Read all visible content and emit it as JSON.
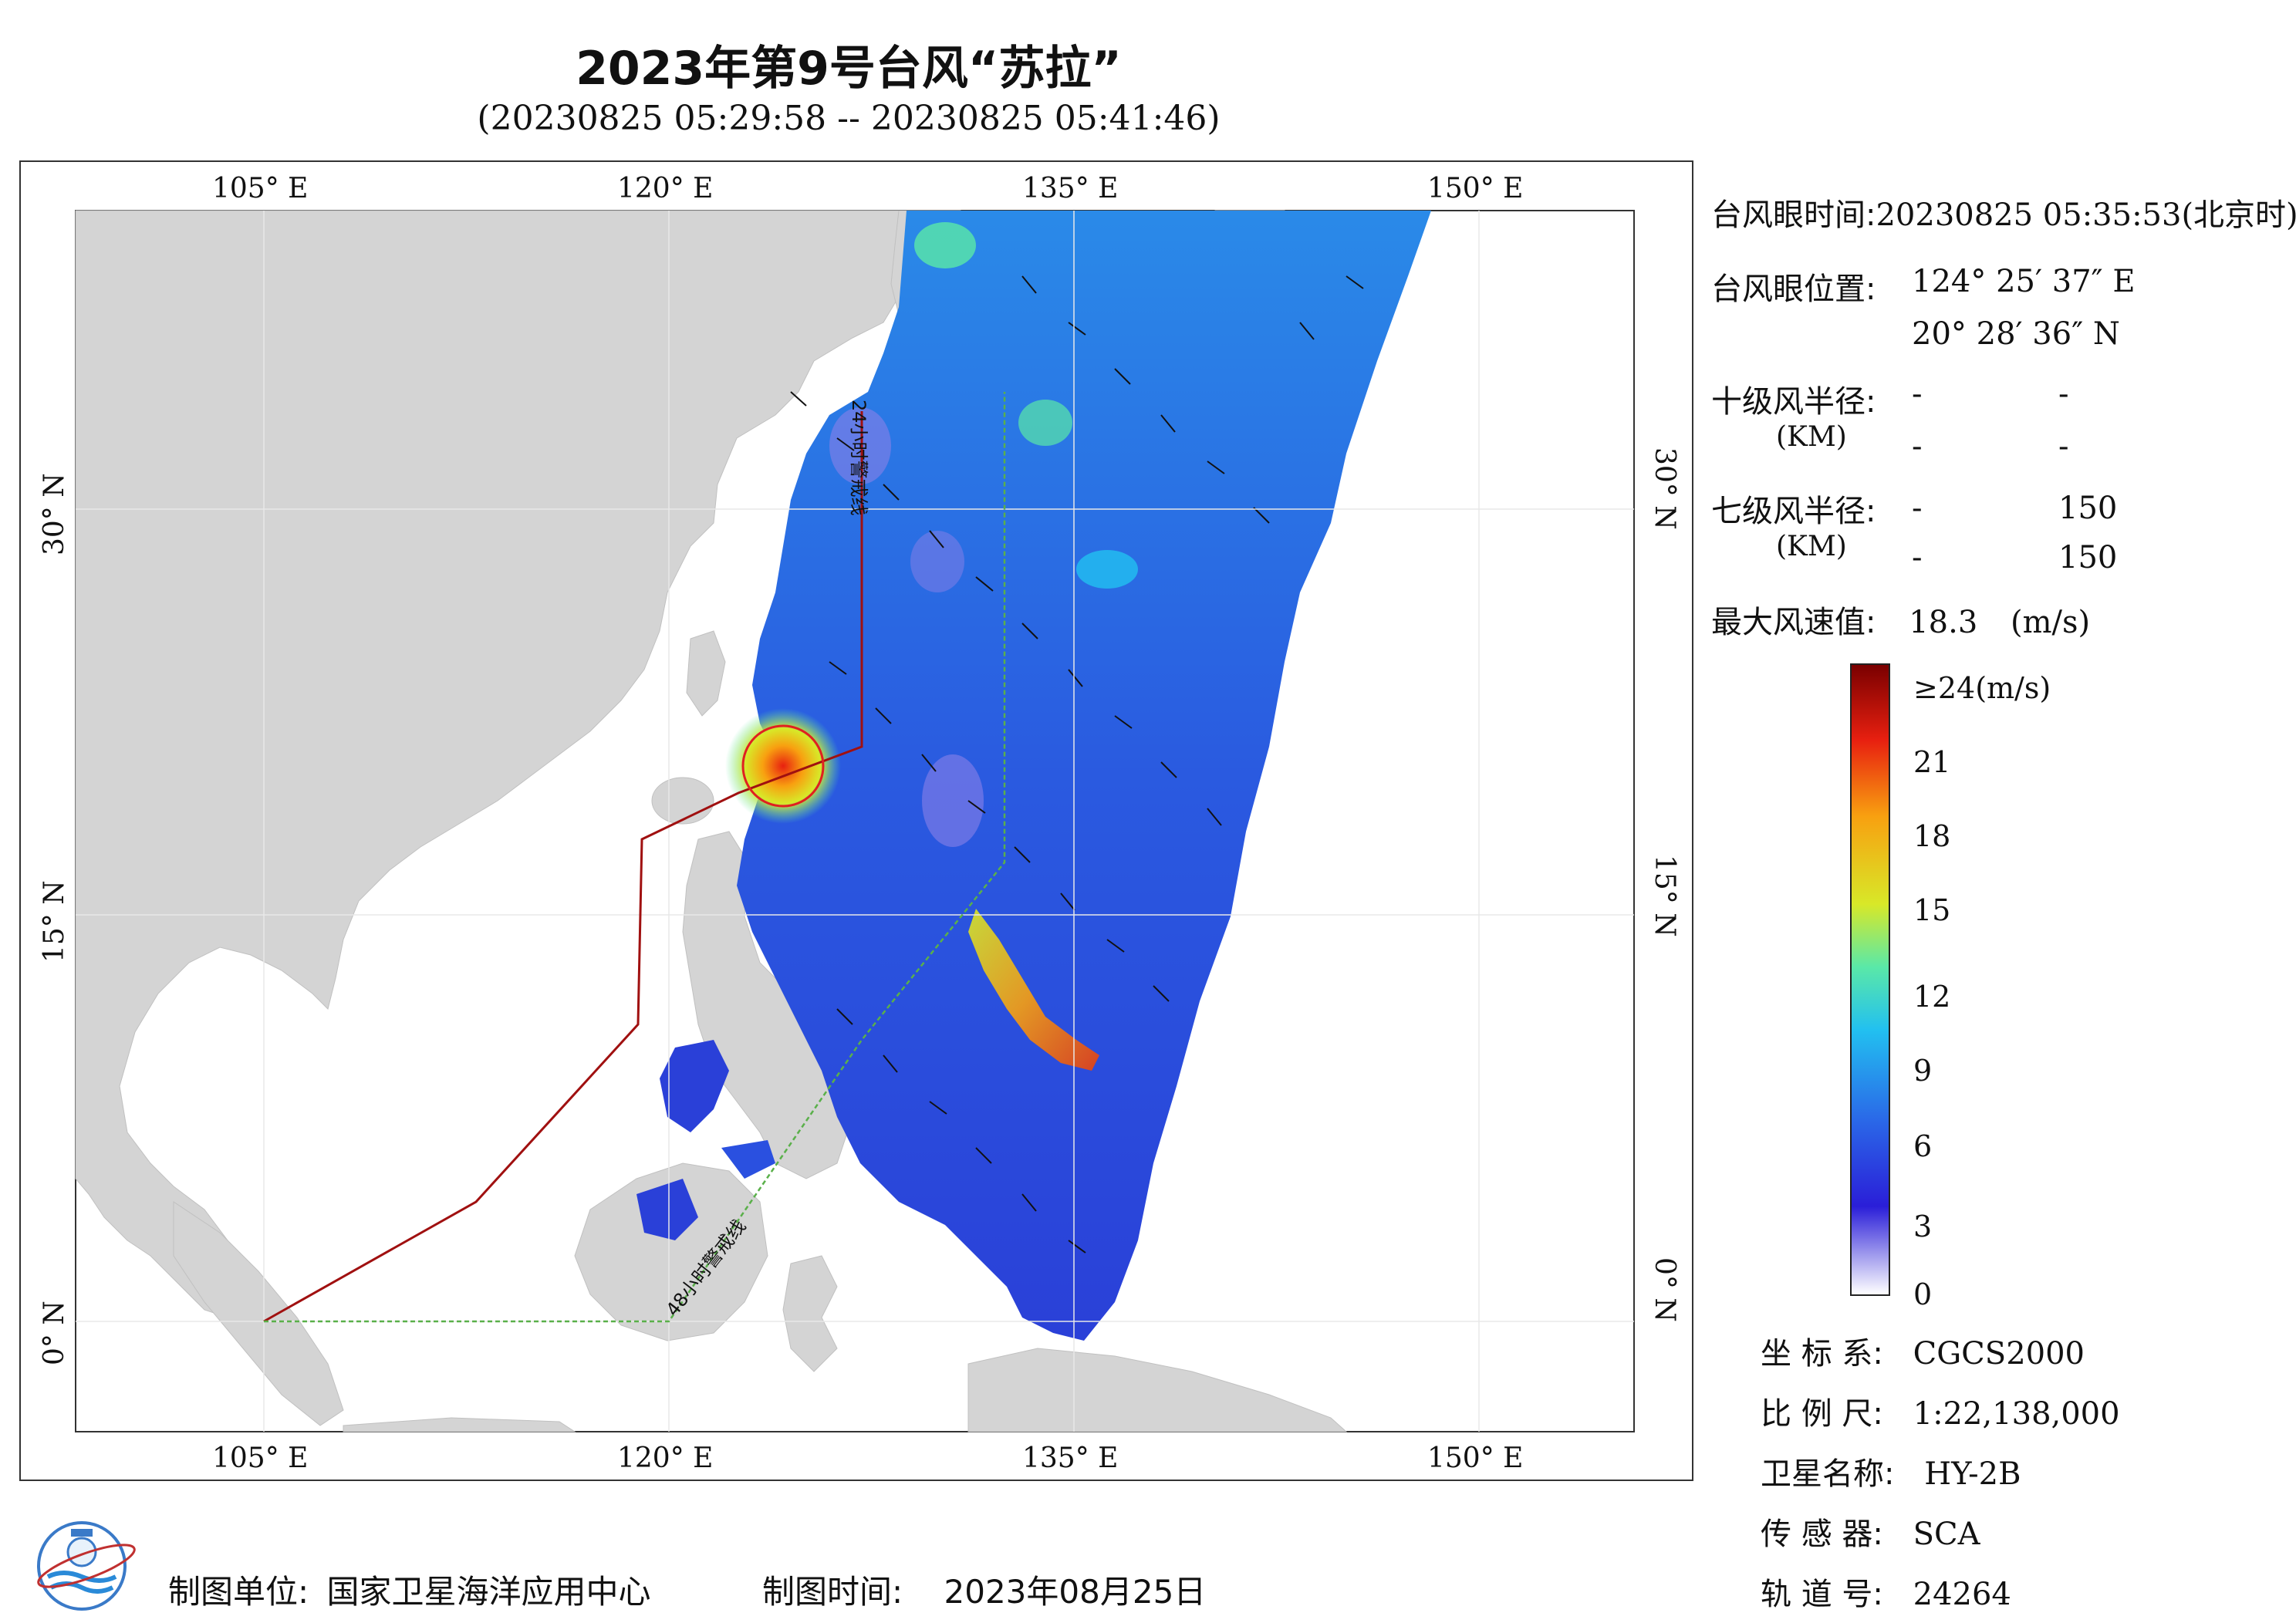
{
  "header": {
    "title": "2023年第9号台风“苏拉”",
    "subtitle": "(20230825 05:29:58 -- 20230825 05:41:46)"
  },
  "map": {
    "lon_ticks_top": [
      "105° E",
      "120° E",
      "135° E",
      "150° E"
    ],
    "lon_ticks_bottom": [
      "105° E",
      "120° E",
      "135° E",
      "150° E"
    ],
    "lat_ticks": [
      "30° N",
      "15° N",
      "0° N"
    ],
    "line_labels": {
      "warning_24h": "24小时警戒线",
      "warning_48h": "48小时警戒线"
    },
    "colors": {
      "land": "#d4d4d4",
      "sea": "#ffffff",
      "warning_24h": "#a01010",
      "warning_48h": "#5ab04a",
      "typhoon_circle": "#e02020"
    }
  },
  "info": {
    "eye_time_label": "台风眼时间:",
    "eye_time_value": "20230825 05:35:53(北京时)",
    "eye_pos_label": "台风眼位置:",
    "eye_lon": "124° 25′ 37″ E",
    "eye_lat": "20° 28′ 36″ N",
    "r10_label": "十级风半径:",
    "r10_unit": "(KM)",
    "r10_vals": [
      "-",
      "-",
      "-",
      "-"
    ],
    "r7_label": "七级风半径:",
    "r7_unit": "(KM)",
    "r7_vals": [
      "-",
      "150",
      "-",
      "150"
    ],
    "max_label": "最大风速值:",
    "max_value": "18.3",
    "max_unit": "(m/s)"
  },
  "colorbar": {
    "top_label": "≥24(m/s)",
    "ticks": [
      "21",
      "18",
      "15",
      "12",
      "9",
      "6",
      "3",
      "0"
    ],
    "stops": [
      "#ffffff",
      "#2a1ed8",
      "#2a6ae8",
      "#22c0f0",
      "#5ae8a8",
      "#d8e828",
      "#f8a010",
      "#e82010",
      "#7a0000"
    ]
  },
  "meta": {
    "coord_label": "坐 标 系:",
    "coord_value": "CGCS2000",
    "scale_label": "比 例 尺:",
    "scale_value": "1:22,138,000",
    "sat_label": "卫星名称:",
    "sat_value": "HY-2B",
    "sensor_label": "传 感 器:",
    "sensor_value": "SCA",
    "orbit_label": "轨 道 号:",
    "orbit_value": "24264"
  },
  "footer": {
    "unit_label": "制图单位:",
    "unit_value": "国家卫星海洋应用中心",
    "time_label": "制图时间:",
    "time_value": "2023年08月25日"
  }
}
